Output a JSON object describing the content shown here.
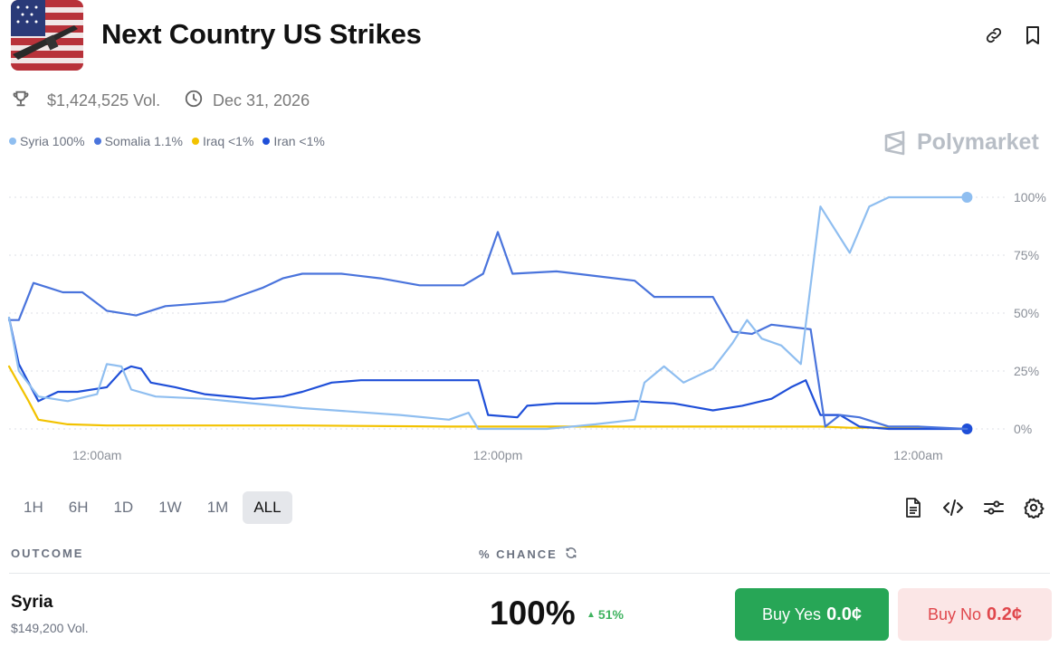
{
  "market": {
    "title": "Next Country US Strikes",
    "volume": "$1,424,525 Vol.",
    "end_date": "Dec 31, 2026"
  },
  "brand": {
    "name": "Polymarket"
  },
  "icons": {
    "link": "link-icon",
    "bookmark": "bookmark-icon",
    "trophy": "trophy-icon",
    "clock": "clock-icon",
    "document": "document-icon",
    "embed": "code-icon",
    "settings_sliders": "sliders-icon",
    "settings": "gear-icon",
    "refresh": "refresh-icon"
  },
  "colors": {
    "syria": "#8fbef0",
    "somalia": "#4a74dc",
    "iraq": "#f2c200",
    "iran": "#1f4fd8",
    "buy_yes_bg": "#27a656",
    "buy_no_bg": "#fbe6e6",
    "buy_no_text": "#e0474c",
    "positive": "#3fb35f"
  },
  "legend": [
    {
      "label": "Syria 100%",
      "color": "#8fbef0"
    },
    {
      "label": "Somalia 1.1%",
      "color": "#4a74dc"
    },
    {
      "label": "Iraq <1%",
      "color": "#f2c200"
    },
    {
      "label": "Iran <1%",
      "color": "#1f4fd8"
    }
  ],
  "chart_data": {
    "type": "line",
    "y_unit": "percent",
    "ylim": [
      0,
      100
    ],
    "y_ticks": [
      "100%",
      "75%",
      "50%",
      "25%",
      "0%"
    ],
    "y_tick_values": [
      100,
      75,
      50,
      25,
      0
    ],
    "x_ticks": [
      "12:00am",
      "12:00pm",
      "12:00am"
    ],
    "x_tick_positions": [
      0.09,
      0.5,
      0.93
    ],
    "grid": true,
    "grid_style": "dotted",
    "series": [
      {
        "name": "Syria",
        "color": "#8fbef0",
        "end_marker": true,
        "points": [
          [
            0,
            48
          ],
          [
            0.01,
            25
          ],
          [
            0.03,
            14
          ],
          [
            0.06,
            12
          ],
          [
            0.09,
            15
          ],
          [
            0.1,
            28
          ],
          [
            0.115,
            27
          ],
          [
            0.125,
            17
          ],
          [
            0.15,
            14
          ],
          [
            0.2,
            13
          ],
          [
            0.3,
            9
          ],
          [
            0.4,
            6
          ],
          [
            0.45,
            4
          ],
          [
            0.47,
            7
          ],
          [
            0.48,
            0
          ],
          [
            0.55,
            0
          ],
          [
            0.6,
            2
          ],
          [
            0.64,
            4
          ],
          [
            0.65,
            20
          ],
          [
            0.67,
            27
          ],
          [
            0.69,
            20
          ],
          [
            0.72,
            26
          ],
          [
            0.74,
            37
          ],
          [
            0.755,
            47
          ],
          [
            0.77,
            39
          ],
          [
            0.79,
            36
          ],
          [
            0.81,
            28
          ],
          [
            0.83,
            96
          ],
          [
            0.86,
            76
          ],
          [
            0.88,
            96
          ],
          [
            0.9,
            100
          ],
          [
            0.98,
            100
          ]
        ]
      },
      {
        "name": "Somalia",
        "color": "#4a74dc",
        "points": [
          [
            0,
            47
          ],
          [
            0.01,
            47
          ],
          [
            0.025,
            63
          ],
          [
            0.04,
            61
          ],
          [
            0.055,
            59
          ],
          [
            0.075,
            59
          ],
          [
            0.1,
            51
          ],
          [
            0.13,
            49
          ],
          [
            0.16,
            53
          ],
          [
            0.19,
            54
          ],
          [
            0.22,
            55
          ],
          [
            0.24,
            58
          ],
          [
            0.26,
            61
          ],
          [
            0.28,
            65
          ],
          [
            0.3,
            67
          ],
          [
            0.34,
            67
          ],
          [
            0.38,
            65
          ],
          [
            0.42,
            62
          ],
          [
            0.465,
            62
          ],
          [
            0.485,
            67
          ],
          [
            0.5,
            85
          ],
          [
            0.515,
            67
          ],
          [
            0.56,
            68
          ],
          [
            0.6,
            66
          ],
          [
            0.64,
            64
          ],
          [
            0.66,
            57
          ],
          [
            0.72,
            57
          ],
          [
            0.74,
            42
          ],
          [
            0.76,
            41
          ],
          [
            0.78,
            45
          ],
          [
            0.82,
            43
          ],
          [
            0.835,
            1
          ],
          [
            0.85,
            6
          ],
          [
            0.87,
            5
          ],
          [
            0.9,
            1
          ],
          [
            0.93,
            1
          ],
          [
            0.98,
            0
          ]
        ]
      },
      {
        "name": "Iraq",
        "color": "#f2c200",
        "points": [
          [
            0,
            27
          ],
          [
            0.02,
            12
          ],
          [
            0.03,
            4
          ],
          [
            0.06,
            2
          ],
          [
            0.1,
            1.5
          ],
          [
            0.2,
            1.5
          ],
          [
            0.3,
            1.5
          ],
          [
            0.45,
            1
          ],
          [
            0.5,
            1
          ],
          [
            0.6,
            1
          ],
          [
            0.7,
            1
          ],
          [
            0.8,
            1
          ],
          [
            0.83,
            1
          ],
          [
            0.86,
            0.5
          ],
          [
            0.9,
            0.5
          ],
          [
            0.98,
            0
          ]
        ]
      },
      {
        "name": "Iran",
        "color": "#1f4fd8",
        "end_marker": true,
        "points": [
          [
            0,
            48
          ],
          [
            0.01,
            28
          ],
          [
            0.03,
            12
          ],
          [
            0.05,
            16
          ],
          [
            0.07,
            16
          ],
          [
            0.1,
            18
          ],
          [
            0.115,
            25
          ],
          [
            0.125,
            27
          ],
          [
            0.135,
            26
          ],
          [
            0.145,
            20
          ],
          [
            0.17,
            18
          ],
          [
            0.2,
            15
          ],
          [
            0.25,
            13
          ],
          [
            0.28,
            14
          ],
          [
            0.3,
            16
          ],
          [
            0.33,
            20
          ],
          [
            0.36,
            21
          ],
          [
            0.4,
            21
          ],
          [
            0.48,
            21
          ],
          [
            0.49,
            6
          ],
          [
            0.52,
            5
          ],
          [
            0.53,
            10
          ],
          [
            0.56,
            11
          ],
          [
            0.6,
            11
          ],
          [
            0.64,
            12
          ],
          [
            0.68,
            11
          ],
          [
            0.72,
            8
          ],
          [
            0.75,
            10
          ],
          [
            0.78,
            13
          ],
          [
            0.8,
            18
          ],
          [
            0.815,
            21
          ],
          [
            0.83,
            6
          ],
          [
            0.85,
            6
          ],
          [
            0.87,
            1
          ],
          [
            0.9,
            0
          ],
          [
            0.98,
            0
          ]
        ]
      }
    ]
  },
  "time_ranges": [
    "1H",
    "6H",
    "1D",
    "1W",
    "1M",
    "ALL"
  ],
  "active_range": "ALL",
  "outcomes_header": {
    "outcome": "OUTCOME",
    "chance": "% CHANCE"
  },
  "outcome": {
    "name": "Syria",
    "volume": "$149,200 Vol.",
    "chance": "100%",
    "change": "51%",
    "buy_yes_label": "Buy Yes",
    "buy_yes_price": "0.0¢",
    "buy_no_label": "Buy No",
    "buy_no_price": "0.2¢"
  }
}
